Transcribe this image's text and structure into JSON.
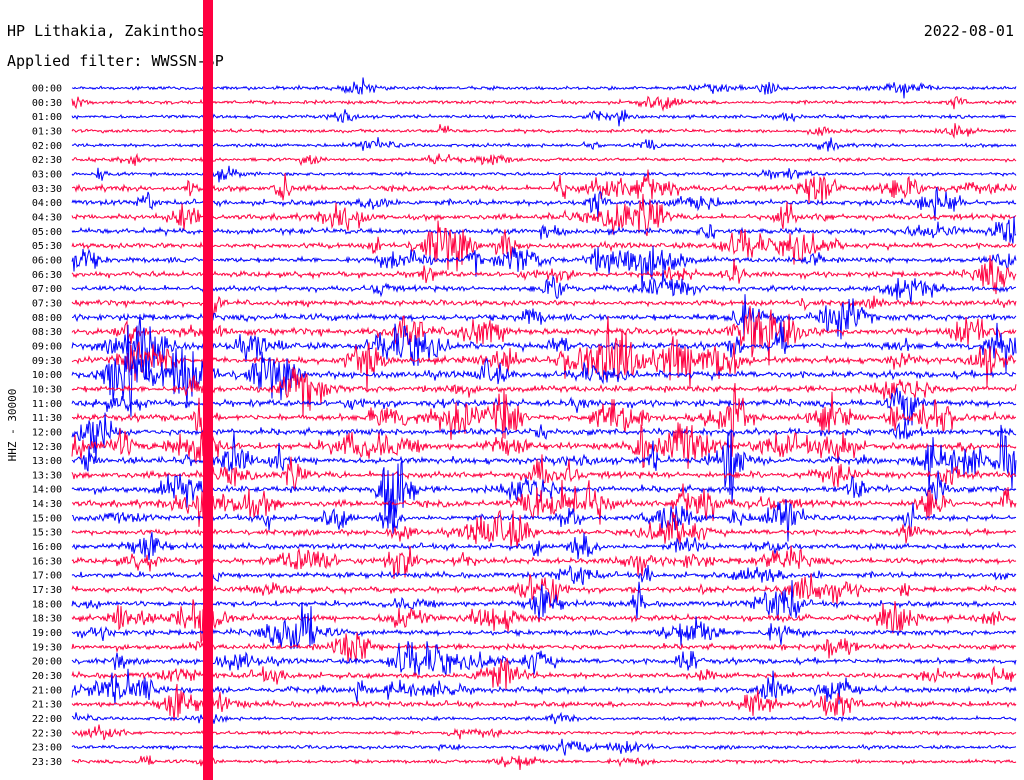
{
  "chart_data": {
    "type": "line",
    "title": "HP Lithakia, Zakinthos",
    "date": "2022-08-01",
    "subtitle": "Applied filter: WWSSN-SP",
    "ylabel": "HHZ - 30000",
    "series_colors": [
      "#0000ff",
      "#ff0040"
    ],
    "row_labels": [
      "00:00",
      "00:30",
      "01:00",
      "01:30",
      "02:00",
      "02:30",
      "03:00",
      "03:30",
      "04:00",
      "04:30",
      "05:00",
      "05:30",
      "06:00",
      "06:30",
      "07:00",
      "07:30",
      "08:00",
      "08:30",
      "09:00",
      "09:30",
      "10:00",
      "10:30",
      "11:00",
      "11:30",
      "12:00",
      "12:30",
      "13:00",
      "13:30",
      "14:00",
      "14:30",
      "15:00",
      "15:30",
      "16:00",
      "16:30",
      "17:00",
      "17:30",
      "18:00",
      "18:30",
      "19:00",
      "19:30",
      "20:00",
      "20:30",
      "21:00",
      "21:30",
      "22:00",
      "22:30",
      "23:00",
      "23:30"
    ],
    "grid": false
  }
}
